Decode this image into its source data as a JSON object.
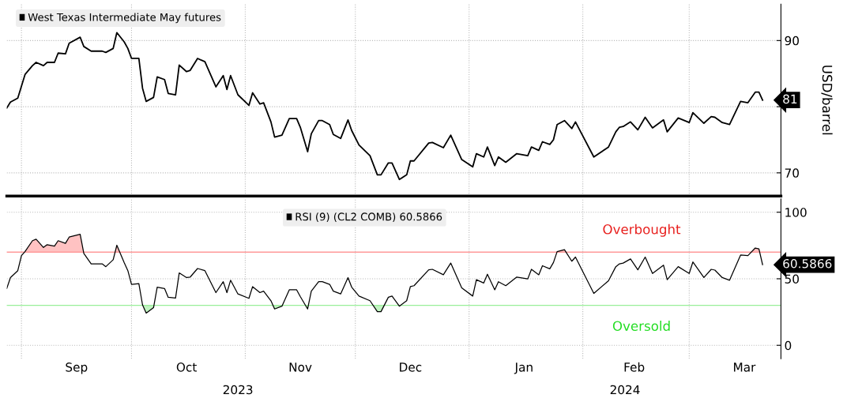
{
  "chart_data": [
    {
      "type": "line",
      "ylabel": "USD/barrel",
      "legend": "top left",
      "grid": true,
      "tick_labels": "y",
      "xlim": [
        "2023-08-28",
        "2024-03-26"
      ],
      "ylim": [
        66.5,
        95.5
      ],
      "xticks": [
        {
          "value": "2023-09-01",
          "label": null
        },
        {
          "value": "2023-10-01",
          "label": null
        },
        {
          "value": "2023-11-01",
          "label": null
        },
        {
          "value": "2023-12-01",
          "label": null
        },
        {
          "value": "2024-01-01",
          "label": null
        },
        {
          "value": "2024-02-01",
          "label": null
        },
        {
          "value": "2024-03-01",
          "label": null
        }
      ],
      "yticks": [
        70,
        {
          "value": 80,
          "label": null
        },
        90
      ],
      "series": [
        {
          "name": "West Texas Intermediate May futures",
          "color": "#000000",
          "x": [
            "2023-08-28",
            "2023-08-29",
            "2023-08-31",
            "2023-09-02",
            "2023-09-04",
            "2023-09-05",
            "2023-09-07",
            "2023-09-08",
            "2023-09-10",
            "2023-09-11",
            "2023-09-13",
            "2023-09-14",
            "2023-09-17",
            "2023-09-18",
            "2023-09-20",
            "2023-09-23",
            "2023-09-24",
            "2023-09-26",
            "2023-09-27",
            "2023-09-29",
            "2023-09-30",
            "2023-10-01",
            "2023-10-03",
            "2023-10-04",
            "2023-10-05",
            "2023-10-07",
            "2023-10-08",
            "2023-10-10",
            "2023-10-11",
            "2023-10-13",
            "2023-10-14",
            "2023-10-16",
            "2023-10-17",
            "2023-10-19",
            "2023-10-21",
            "2023-10-24",
            "2023-10-26",
            "2023-10-27",
            "2023-10-28",
            "2023-10-30",
            "2023-11-02",
            "2023-11-03",
            "2023-11-05",
            "2023-11-06",
            "2023-11-08",
            "2023-11-09",
            "2023-11-11",
            "2023-11-13",
            "2023-11-15",
            "2023-11-16",
            "2023-11-18",
            "2023-11-19",
            "2023-11-21",
            "2023-11-22",
            "2023-11-24",
            "2023-11-25",
            "2023-11-27",
            "2023-11-29",
            "2023-11-30",
            "2023-12-02",
            "2023-12-05",
            "2023-12-07",
            "2023-12-08",
            "2023-12-10",
            "2023-12-11",
            "2023-12-13",
            "2023-12-15",
            "2023-12-16",
            "2023-12-17",
            "2023-12-21",
            "2023-12-22",
            "2023-12-25",
            "2023-12-27",
            "2023-12-30",
            "2024-01-02",
            "2024-01-03",
            "2024-01-05",
            "2024-01-06",
            "2024-01-08",
            "2024-01-09",
            "2024-01-11",
            "2024-01-14",
            "2024-01-17",
            "2024-01-18",
            "2024-01-20",
            "2024-01-21",
            "2024-01-23",
            "2024-01-24",
            "2024-01-25",
            "2024-01-27",
            "2024-01-29",
            "2024-01-30",
            "2024-02-04",
            "2024-02-08",
            "2024-02-10",
            "2024-02-11",
            "2024-02-12",
            "2024-02-14",
            "2024-02-16",
            "2024-02-18",
            "2024-02-20",
            "2024-02-23",
            "2024-02-24",
            "2024-02-27",
            "2024-03-01",
            "2024-03-02",
            "2024-03-05",
            "2024-03-07",
            "2024-03-08",
            "2024-03-10",
            "2024-03-12",
            "2024-03-15",
            "2024-03-17",
            "2024-03-19",
            "2024-03-20",
            "2024-03-21"
          ],
          "values": [
            79.8,
            80.7,
            81.3,
            84.9,
            86.2,
            86.7,
            86.2,
            86.7,
            86.7,
            88.1,
            88.0,
            89.6,
            90.5,
            89.1,
            88.4,
            88.4,
            88.2,
            88.8,
            91.2,
            89.8,
            88.8,
            87.3,
            87.3,
            82.8,
            80.8,
            81.4,
            84.5,
            84.1,
            82.0,
            81.8,
            86.3,
            85.3,
            85.5,
            87.3,
            86.8,
            83.0,
            84.7,
            82.6,
            84.7,
            81.8,
            80.2,
            82.1,
            80.4,
            80.6,
            77.7,
            75.4,
            75.7,
            78.2,
            78.2,
            76.9,
            73.2,
            75.9,
            77.9,
            77.9,
            77.3,
            75.8,
            75.2,
            78.0,
            76.4,
            74.2,
            72.6,
            69.7,
            69.7,
            71.5,
            71.5,
            69.0,
            69.7,
            71.8,
            71.8,
            74.5,
            74.6,
            73.8,
            75.7,
            72.0,
            70.9,
            72.9,
            72.4,
            73.9,
            71.1,
            72.4,
            71.6,
            72.9,
            72.6,
            73.9,
            73.4,
            74.7,
            74.3,
            75.0,
            77.3,
            77.9,
            76.7,
            77.7,
            72.4,
            73.9,
            76.2,
            76.9,
            77.0,
            77.7,
            76.5,
            78.4,
            76.8,
            78.0,
            76.2,
            78.3,
            77.6,
            79.1,
            77.5,
            78.5,
            78.4,
            77.6,
            77.3,
            80.8,
            80.6,
            82.2,
            82.2,
            81
          ],
          "value_labels": [
            null,
            null,
            null,
            null,
            null,
            null,
            null,
            null,
            null,
            null,
            null,
            null,
            null,
            null,
            null,
            null,
            null,
            null,
            null,
            null,
            null,
            null,
            null,
            null,
            null,
            null,
            null,
            null,
            null,
            null,
            null,
            null,
            null,
            null,
            null,
            null,
            null,
            null,
            null,
            null,
            null,
            null,
            null,
            null,
            null,
            null,
            null,
            null,
            null,
            null,
            null,
            null,
            null,
            null,
            null,
            null,
            null,
            null,
            null,
            null,
            null,
            null,
            null,
            null,
            null,
            null,
            null,
            null,
            null,
            null,
            null,
            null,
            null,
            null,
            null,
            null,
            null,
            null,
            null,
            null,
            null,
            null,
            null,
            null,
            null,
            null,
            null,
            null,
            null,
            null,
            null,
            null,
            null,
            null,
            null,
            null,
            null,
            null,
            null,
            null,
            null,
            null,
            null,
            null,
            null,
            null,
            null,
            null,
            null,
            null,
            null,
            null,
            null,
            null,
            null,
            "81"
          ]
        }
      ]
    },
    {
      "type": "line",
      "legend": "top",
      "grid": true,
      "xlim": [
        "2023-08-28",
        "2024-03-26"
      ],
      "ylim": [
        -10,
        110
      ],
      "xticks": [
        {
          "value": "2023-09-01",
          "label": null
        },
        {
          "value": "2023-09-16",
          "label": "Sep"
        },
        {
          "value": "2023-10-01",
          "label": null
        },
        {
          "value": "2023-10-16",
          "label": "Oct"
        },
        {
          "value": "2023-11-01",
          "label": null
        },
        {
          "value": "2023-11-16",
          "label": "Nov"
        },
        {
          "value": "2023-12-01",
          "label": null
        },
        {
          "value": "2023-12-16",
          "label": "Dec"
        },
        {
          "value": "2024-01-01",
          "label": null
        },
        {
          "value": "2024-01-16",
          "label": "Jan"
        },
        {
          "value": "2024-02-01",
          "label": null
        },
        {
          "value": "2024-02-15",
          "label": "Feb"
        },
        {
          "value": "2024-03-01",
          "label": null
        },
        {
          "value": "2024-03-16",
          "label": "Mar"
        }
      ],
      "yticks": [
        0,
        50,
        100
      ],
      "annotations": [
        "2023",
        "2024"
      ],
      "ref_lines": [
        {
          "axis": "y",
          "value": 70,
          "label": "Overbought",
          "color": "#ff9999"
        },
        {
          "axis": "y",
          "value": 30,
          "label": "Oversold",
          "color": "#99ee99"
        }
      ],
      "series": [
        {
          "name": "RSI (9) (CL2 COMB) 60.5866",
          "color": "#000000",
          "x": [
            "2023-08-28",
            "2023-08-29",
            "2023-08-31",
            "2023-09-01",
            "2023-09-02",
            "2023-09-04",
            "2023-09-05",
            "2023-09-07",
            "2023-09-08",
            "2023-09-10",
            "2023-09-11",
            "2023-09-13",
            "2023-09-14",
            "2023-09-17",
            "2023-09-18",
            "2023-09-20",
            "2023-09-23",
            "2023-09-24",
            "2023-09-26",
            "2023-09-27",
            "2023-09-29",
            "2023-09-30",
            "2023-10-01",
            "2023-10-03",
            "2023-10-04",
            "2023-10-05",
            "2023-10-07",
            "2023-10-08",
            "2023-10-10",
            "2023-10-11",
            "2023-10-13",
            "2023-10-14",
            "2023-10-16",
            "2023-10-17",
            "2023-10-19",
            "2023-10-21",
            "2023-10-24",
            "2023-10-26",
            "2023-10-27",
            "2023-10-28",
            "2023-10-30",
            "2023-11-02",
            "2023-11-03",
            "2023-11-05",
            "2023-11-06",
            "2023-11-08",
            "2023-11-09",
            "2023-11-11",
            "2023-11-13",
            "2023-11-15",
            "2023-11-16",
            "2023-11-18",
            "2023-11-19",
            "2023-11-21",
            "2023-11-22",
            "2023-11-24",
            "2023-11-25",
            "2023-11-27",
            "2023-11-29",
            "2023-11-30",
            "2023-12-02",
            "2023-12-05",
            "2023-12-07",
            "2023-12-08",
            "2023-12-10",
            "2023-12-11",
            "2023-12-13",
            "2023-12-15",
            "2023-12-16",
            "2023-12-17",
            "2023-12-21",
            "2023-12-22",
            "2023-12-25",
            "2023-12-27",
            "2023-12-30",
            "2024-01-02",
            "2024-01-03",
            "2024-01-05",
            "2024-01-06",
            "2024-01-08",
            "2024-01-09",
            "2024-01-11",
            "2024-01-14",
            "2024-01-17",
            "2024-01-18",
            "2024-01-20",
            "2024-01-21",
            "2024-01-23",
            "2024-01-24",
            "2024-01-25",
            "2024-01-27",
            "2024-01-29",
            "2024-01-30",
            "2024-02-04",
            "2024-02-08",
            "2024-02-10",
            "2024-02-11",
            "2024-02-12",
            "2024-02-14",
            "2024-02-16",
            "2024-02-18",
            "2024-02-20",
            "2024-02-23",
            "2024-02-24",
            "2024-02-27",
            "2024-03-01",
            "2024-03-02",
            "2024-03-05",
            "2024-03-07",
            "2024-03-08",
            "2024-03-10",
            "2024-03-12",
            "2024-03-15",
            "2024-03-17",
            "2024-03-19",
            "2024-03-20",
            "2024-03-21"
          ],
          "values": [
            42.7,
            50.9,
            56.1,
            67.4,
            70.5,
            78.6,
            79.7,
            73.5,
            75.6,
            74.5,
            78.6,
            76.6,
            81.3,
            83.4,
            69.0,
            61.2,
            61.2,
            59.1,
            64.3,
            75.2,
            62.2,
            56.1,
            45.8,
            46.4,
            30.4,
            24.2,
            28.3,
            43.7,
            42.7,
            36.1,
            35.5,
            54.4,
            50.9,
            51.3,
            57.7,
            56.1,
            39.6,
            47.8,
            39.6,
            48.9,
            38.6,
            35.3,
            44.1,
            39.6,
            40.7,
            33.5,
            27.3,
            29.4,
            41.7,
            41.7,
            36.6,
            27.3,
            40.7,
            47.8,
            47.8,
            45.8,
            40.7,
            38.6,
            50.9,
            43.7,
            37.0,
            33.5,
            25.3,
            25.3,
            36.1,
            37.0,
            29.4,
            33.5,
            44.1,
            44.8,
            56.7,
            57.1,
            53.0,
            61.8,
            43.1,
            37.0,
            49.3,
            46.8,
            53.4,
            41.7,
            47.8,
            44.8,
            51.3,
            49.9,
            57.1,
            53.0,
            59.8,
            57.5,
            62.2,
            70.4,
            71.9,
            63.2,
            66.3,
            39.0,
            48.5,
            59.1,
            61.2,
            61.8,
            64.9,
            56.7,
            66.3,
            54.0,
            60.2,
            49.3,
            59.1,
            54.0,
            62.6,
            50.9,
            57.1,
            56.5,
            50.9,
            48.9,
            67.8,
            67.4,
            73.1,
            72.5,
            60.5866
          ],
          "value_labels": [
            null,
            null,
            null,
            null,
            null,
            null,
            null,
            null,
            null,
            null,
            null,
            null,
            null,
            null,
            null,
            null,
            null,
            null,
            null,
            null,
            null,
            null,
            null,
            null,
            null,
            null,
            null,
            null,
            null,
            null,
            null,
            null,
            null,
            null,
            null,
            null,
            null,
            null,
            null,
            null,
            null,
            null,
            null,
            null,
            null,
            null,
            null,
            null,
            null,
            null,
            null,
            null,
            null,
            null,
            null,
            null,
            null,
            null,
            null,
            null,
            null,
            null,
            null,
            null,
            null,
            null,
            null,
            null,
            null,
            null,
            null,
            null,
            null,
            null,
            null,
            null,
            null,
            null,
            null,
            null,
            null,
            null,
            null,
            null,
            null,
            null,
            null,
            null,
            null,
            null,
            null,
            null,
            null,
            null,
            null,
            null,
            null,
            null,
            null,
            null,
            null,
            null,
            null,
            null,
            null,
            null,
            null,
            null,
            null,
            null,
            null,
            null,
            null,
            null,
            null,
            null,
            "60.5866"
          ]
        }
      ]
    }
  ]
}
